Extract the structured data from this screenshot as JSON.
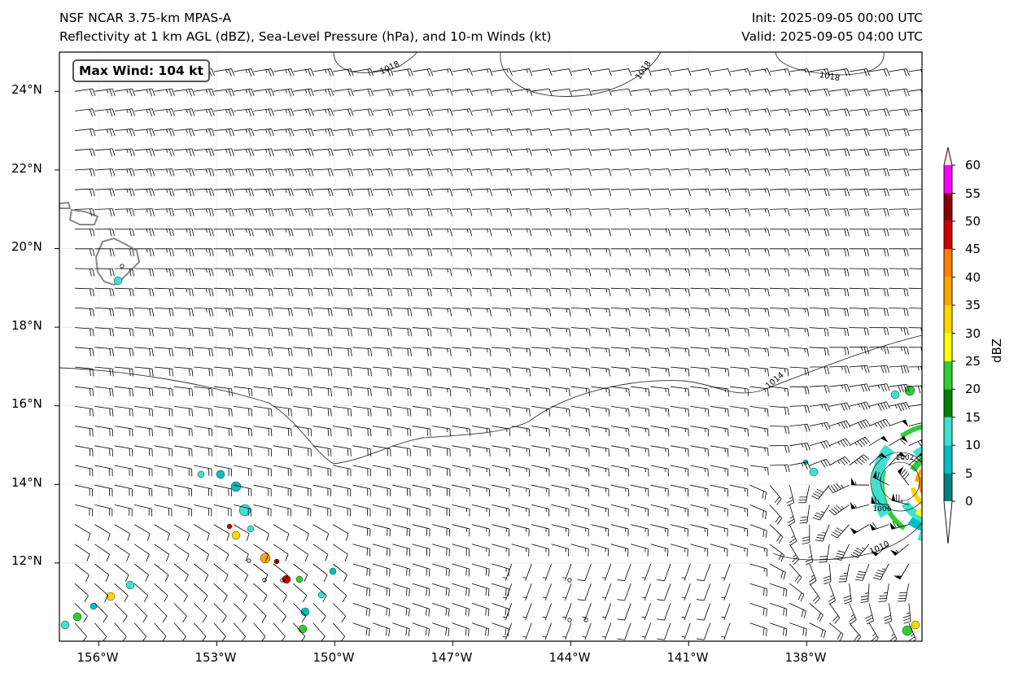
{
  "header": {
    "model": "NSF NCAR 3.75-km MPAS-A",
    "fields": "Reflectivity at 1 km AGL (dBZ), Sea-Level Pressure (hPa), and 10-m Winds (kt)",
    "init": "Init: 2025-09-05 00:00 UTC",
    "valid": "Valid: 2025-09-05 04:00 UTC"
  },
  "map": {
    "max_wind_label": "Max Wind: 104 kt",
    "lon_ticks": [
      "156°W",
      "153°W",
      "150°W",
      "147°W",
      "144°W",
      "141°W",
      "138°W"
    ],
    "lat_ticks": [
      "24°N",
      "22°N",
      "20°N",
      "18°N",
      "16°N",
      "14°N",
      "12°N"
    ],
    "isobar_labels": [
      "1018",
      "1018",
      "1018",
      "1014",
      "1010",
      "1006",
      "1002"
    ],
    "storm": {
      "lon": -134.7,
      "lat": 14.0,
      "name": "hurricane-center"
    }
  },
  "colorbar": {
    "label": "dBZ",
    "ticks": [
      "0",
      "5",
      "10",
      "15",
      "20",
      "25",
      "30",
      "35",
      "40",
      "45",
      "50",
      "55",
      "60"
    ],
    "colors": [
      "#008080",
      "#00c0c0",
      "#40e0d0",
      "#008000",
      "#32cd32",
      "#ffff00",
      "#ffd700",
      "#ffa500",
      "#ff7f00",
      "#cc0000",
      "#8b0000",
      "#ff00ff",
      "#ffe4e1"
    ]
  }
}
